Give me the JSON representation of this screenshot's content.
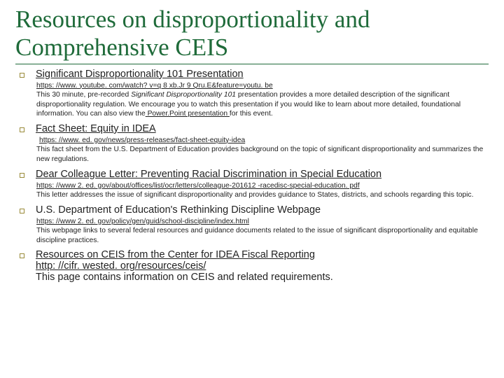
{
  "title": "Resources on disproportionality and Comprehensive CEIS",
  "colors": {
    "accent": "#1f6b3a",
    "bullet_border": "#9a8b3a",
    "text": "#222222",
    "bg": "#ffffff"
  },
  "items": [
    {
      "heading": "Significant Disproportionality 101 Presentation",
      "heading_underline": true,
      "url": "https: //www. youtube. com/watch? v=q 8 xb.Jr 9 Qru.E&feature=youtu. be",
      "desc_pre": "This 30 minute, pre-recorded ",
      "desc_italic": "Significant Disproportionality 101",
      "desc_post": " presentation provides a more detailed description of the significant disproportionality regulation. We encourage you to watch this presentation if you would like to learn about more detailed, foundational information.  You can also view the",
      "desc_link2": " Power.Point presentation ",
      "desc_tail": "for this event."
    },
    {
      "heading": "Fact Sheet: Equity in IDEA",
      "heading_underline": true,
      "lead_space": true,
      "url": "https: //www. ed. gov/news/press-releases/fact-sheet-equity-idea",
      "desc": "This fact sheet from the U.S. Department of Education provides background on the topic of significant disproportionality and summarizes the new regulations."
    },
    {
      "heading": "Dear Colleague Letter: Preventing Racial Discrimination in Special Education",
      "heading_underline": true,
      "url": "https: //www 2. ed. gov/about/offices/list/ocr/letters/colleague-201612 -racedisc-special-education. pdf",
      "desc": "This letter addresses the issue of significant disproportionality and provides guidance to States, districts, and schools regarding this topic."
    },
    {
      "heading": "U.S. Department of Education's Rethinking Discipline Webpage",
      "heading_underline": false,
      "url": "https: //www 2. ed. gov/policy/gen/guid/school-discipline/index.html",
      "desc": "This webpage links to several federal resources and guidance documents related to the issue of significant disproportionality and equitable discipline practices."
    },
    {
      "heading": "Resources on CEIS from the Center for IDEA Fiscal Reporting",
      "heading_underline": true,
      "url_as_heading": "http: //cifr. wested. org/resources/ceis/",
      "desc": "This page contains information on CEIS and related requirements."
    }
  ]
}
